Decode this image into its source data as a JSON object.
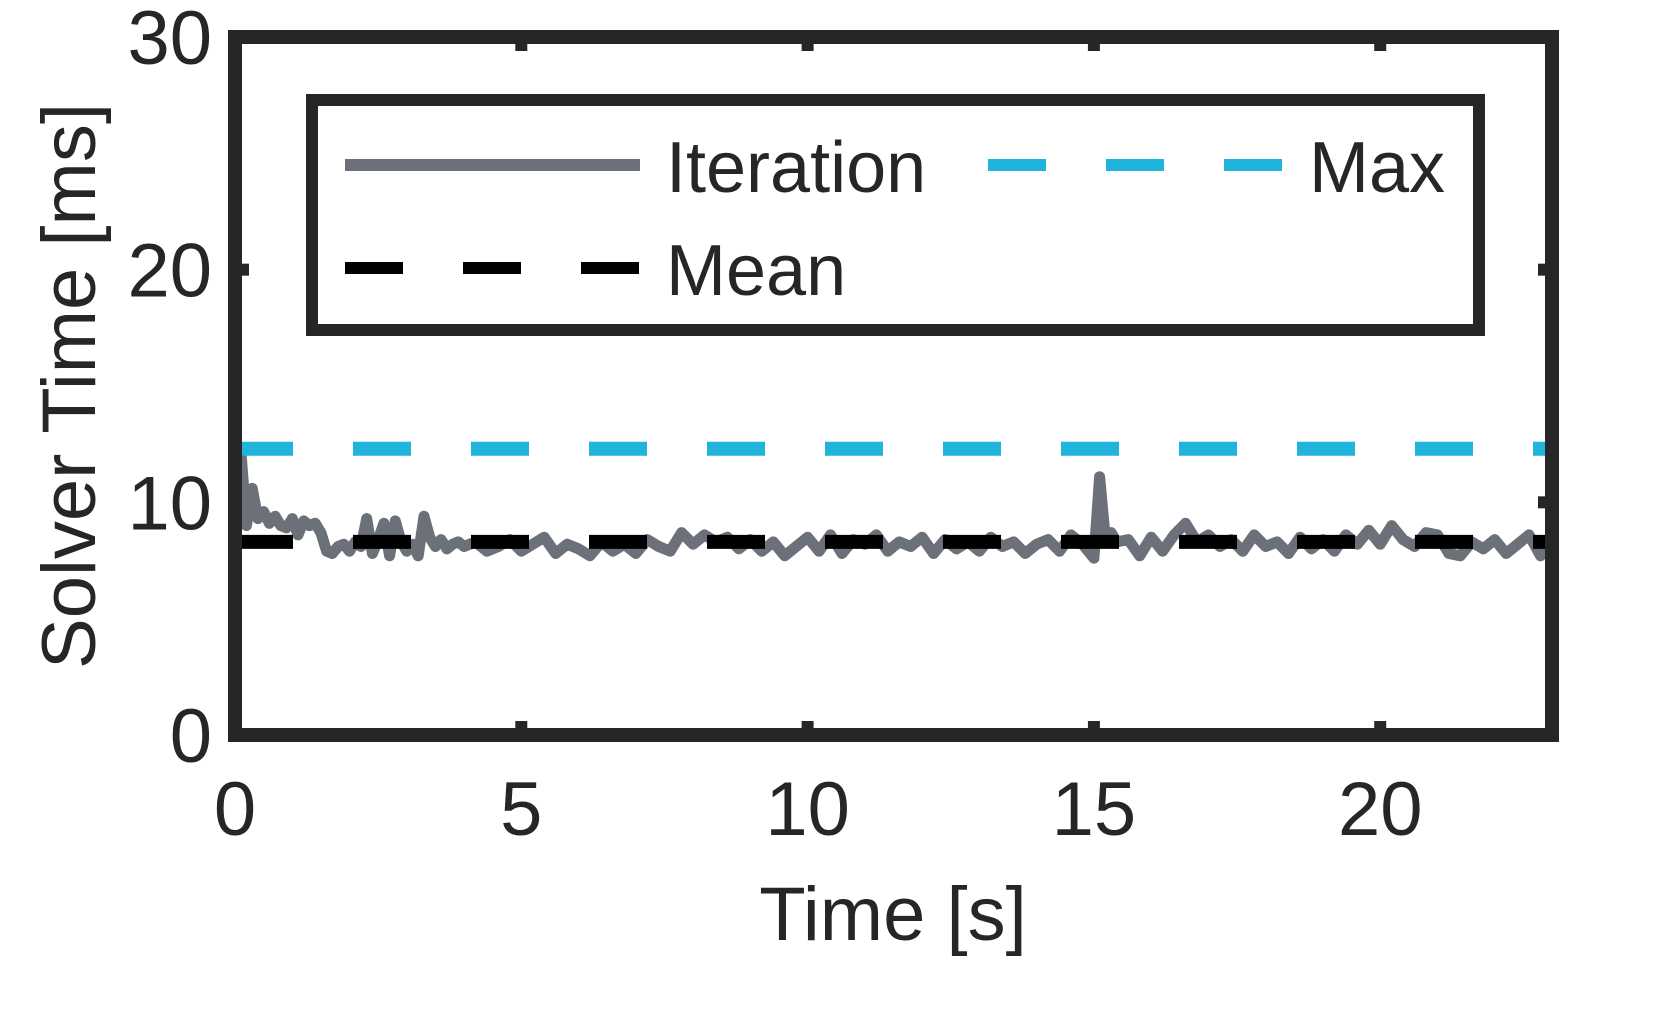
{
  "chart_data": {
    "type": "line",
    "xlabel": "Time [s]",
    "ylabel": "Solver Time [ms]",
    "xlim": [
      0,
      23
    ],
    "ylim": [
      0,
      30
    ],
    "x_ticks": [
      0,
      5,
      10,
      15,
      20
    ],
    "y_ticks": [
      0,
      10,
      20,
      30
    ],
    "grid": false,
    "legend_position": "top",
    "series": [
      {
        "name": "Iteration",
        "style": "solid",
        "color": "#6b7079",
        "x": [
          0,
          0.1,
          0.2,
          0.3,
          0.4,
          0.5,
          0.6,
          0.7,
          0.8,
          0.9,
          1.0,
          1.1,
          1.2,
          1.3,
          1.4,
          1.5,
          1.6,
          1.7,
          1.8,
          1.9,
          2.0,
          2.1,
          2.2,
          2.3,
          2.4,
          2.5,
          2.6,
          2.7,
          2.8,
          2.9,
          3.0,
          3.1,
          3.2,
          3.3,
          3.4,
          3.5,
          3.6,
          3.7,
          3.8,
          3.9,
          4.0,
          4.2,
          4.4,
          4.6,
          4.8,
          5.0,
          5.2,
          5.4,
          5.6,
          5.8,
          6.0,
          6.2,
          6.4,
          6.6,
          6.8,
          7.0,
          7.2,
          7.4,
          7.6,
          7.8,
          8.0,
          8.2,
          8.4,
          8.6,
          8.8,
          9.0,
          9.2,
          9.4,
          9.6,
          9.8,
          10.0,
          10.2,
          10.4,
          10.6,
          10.8,
          11.0,
          11.2,
          11.4,
          11.6,
          11.8,
          12.0,
          12.2,
          12.4,
          12.6,
          12.8,
          13.0,
          13.2,
          13.4,
          13.6,
          13.8,
          14.0,
          14.2,
          14.4,
          14.6,
          14.8,
          14.9,
          15.0,
          15.1,
          15.2,
          15.3,
          15.4,
          15.6,
          15.8,
          16.0,
          16.2,
          16.4,
          16.6,
          16.8,
          17.0,
          17.2,
          17.4,
          17.6,
          17.8,
          18.0,
          18.2,
          18.4,
          18.6,
          18.8,
          19.0,
          19.2,
          19.4,
          19.6,
          19.8,
          20.0,
          20.2,
          20.4,
          20.6,
          20.8,
          21.0,
          21.2,
          21.4,
          21.6,
          21.8,
          22.0,
          22.2,
          22.4,
          22.6,
          22.8,
          23.0
        ],
        "values": [
          10.2,
          12.3,
          9.0,
          10.6,
          9.3,
          9.6,
          9.1,
          9.4,
          9.0,
          8.9,
          9.3,
          8.6,
          9.2,
          9.0,
          9.1,
          8.7,
          7.9,
          7.8,
          8.1,
          8.2,
          7.9,
          8.3,
          8.1,
          9.3,
          7.8,
          8.4,
          9.1,
          7.7,
          9.2,
          8.3,
          7.9,
          8.2,
          7.7,
          9.4,
          8.5,
          8.1,
          8.4,
          8.0,
          8.2,
          8.3,
          8.1,
          8.3,
          7.9,
          8.1,
          8.4,
          7.9,
          8.2,
          8.5,
          7.8,
          8.2,
          8.0,
          7.7,
          8.3,
          7.9,
          8.2,
          7.8,
          8.4,
          8.1,
          7.9,
          8.7,
          8.2,
          8.6,
          8.3,
          8.5,
          8.0,
          8.4,
          7.9,
          8.3,
          7.7,
          8.1,
          8.5,
          7.9,
          8.6,
          7.8,
          8.4,
          8.2,
          8.6,
          7.9,
          8.3,
          8.1,
          8.5,
          7.8,
          8.4,
          8.0,
          8.3,
          7.9,
          8.5,
          8.1,
          8.3,
          7.8,
          8.2,
          8.4,
          7.9,
          8.6,
          8.2,
          7.9,
          7.6,
          11.1,
          8.4,
          8.7,
          8.3,
          8.4,
          7.7,
          8.5,
          7.9,
          8.6,
          9.1,
          8.3,
          8.6,
          8.1,
          8.4,
          7.9,
          8.6,
          8.1,
          8.3,
          7.8,
          8.5,
          8.0,
          8.4,
          7.9,
          8.6,
          8.2,
          8.8,
          8.2,
          9.0,
          8.4,
          8.1,
          8.7,
          8.6,
          7.8,
          7.7,
          8.3,
          8.0,
          8.4,
          7.8,
          8.2,
          8.6,
          7.7,
          8.3
        ]
      },
      {
        "name": "Max",
        "style": "dashed",
        "color": "#20b4dc",
        "x": [
          0,
          23
        ],
        "values": [
          12.3,
          12.3
        ]
      },
      {
        "name": "Mean",
        "style": "dashed",
        "color": "#000000",
        "x": [
          0,
          23
        ],
        "values": [
          8.3,
          8.3
        ]
      }
    ]
  }
}
